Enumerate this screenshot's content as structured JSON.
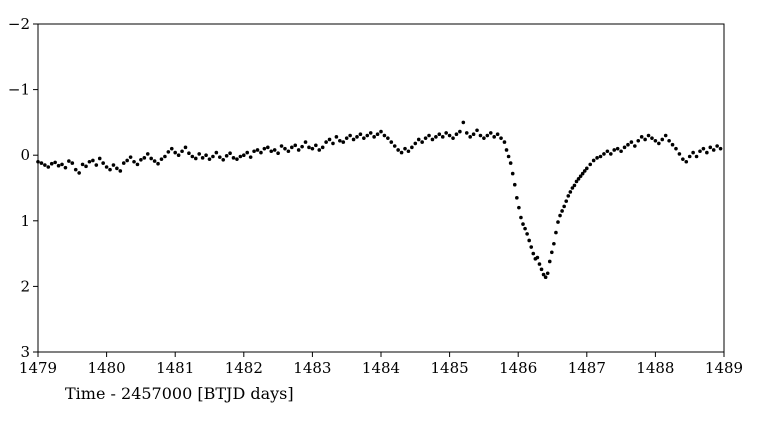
{
  "chart_data": {
    "type": "scatter",
    "title": "",
    "xlabel": "Time - 2457000 [BTJD days]",
    "ylabel": "",
    "xlim": [
      1479,
      1489
    ],
    "ylim": [
      3,
      -2
    ],
    "y_inverted": true,
    "grid": false,
    "marker_color": "#000000",
    "x_ticks": [
      1479,
      1480,
      1481,
      1482,
      1483,
      1484,
      1485,
      1486,
      1487,
      1488,
      1489
    ],
    "y_ticks": [
      -2,
      -1,
      0,
      1,
      2,
      3
    ],
    "x_tick_labels": [
      "1479",
      "1480",
      "1481",
      "1482",
      "1483",
      "1484",
      "1485",
      "1486",
      "1487",
      "1488",
      "1489"
    ],
    "y_tick_labels": [
      "−2",
      "−1",
      "0",
      "1",
      "2",
      "3"
    ],
    "series": [
      {
        "points": [
          [
            1479.0,
            0.1
          ],
          [
            1479.05,
            0.12
          ],
          [
            1479.1,
            0.15
          ],
          [
            1479.15,
            0.18
          ],
          [
            1479.2,
            0.13
          ],
          [
            1479.25,
            0.11
          ],
          [
            1479.3,
            0.16
          ],
          [
            1479.35,
            0.14
          ],
          [
            1479.4,
            0.19
          ],
          [
            1479.45,
            0.09
          ],
          [
            1479.5,
            0.12
          ],
          [
            1479.55,
            0.22
          ],
          [
            1479.6,
            0.27
          ],
          [
            1479.65,
            0.14
          ],
          [
            1479.7,
            0.17
          ],
          [
            1479.75,
            0.1
          ],
          [
            1479.8,
            0.08
          ],
          [
            1479.85,
            0.15
          ],
          [
            1479.9,
            0.05
          ],
          [
            1479.95,
            0.12
          ],
          [
            1480.0,
            0.18
          ],
          [
            1480.05,
            0.22
          ],
          [
            1480.1,
            0.15
          ],
          [
            1480.15,
            0.2
          ],
          [
            1480.2,
            0.24
          ],
          [
            1480.25,
            0.12
          ],
          [
            1480.3,
            0.08
          ],
          [
            1480.35,
            0.03
          ],
          [
            1480.4,
            0.1
          ],
          [
            1480.45,
            0.14
          ],
          [
            1480.5,
            0.07
          ],
          [
            1480.55,
            0.04
          ],
          [
            1480.6,
            -0.02
          ],
          [
            1480.65,
            0.05
          ],
          [
            1480.7,
            0.09
          ],
          [
            1480.75,
            0.13
          ],
          [
            1480.8,
            0.06
          ],
          [
            1480.85,
            0.02
          ],
          [
            1480.9,
            -0.05
          ],
          [
            1480.95,
            -0.1
          ],
          [
            1481.0,
            -0.04
          ],
          [
            1481.05,
            0.0
          ],
          [
            1481.1,
            -0.06
          ],
          [
            1481.15,
            -0.12
          ],
          [
            1481.2,
            -0.03
          ],
          [
            1481.25,
            0.02
          ],
          [
            1481.3,
            0.05
          ],
          [
            1481.35,
            -0.02
          ],
          [
            1481.4,
            0.04
          ],
          [
            1481.45,
            0.0
          ],
          [
            1481.5,
            0.06
          ],
          [
            1481.55,
            0.02
          ],
          [
            1481.6,
            -0.04
          ],
          [
            1481.65,
            0.03
          ],
          [
            1481.7,
            0.07
          ],
          [
            1481.75,
            0.01
          ],
          [
            1481.8,
            -0.03
          ],
          [
            1481.85,
            0.04
          ],
          [
            1481.9,
            0.06
          ],
          [
            1481.95,
            0.02
          ],
          [
            1482.0,
            0.0
          ],
          [
            1482.05,
            -0.04
          ],
          [
            1482.1,
            0.03
          ],
          [
            1482.15,
            -0.06
          ],
          [
            1482.2,
            -0.08
          ],
          [
            1482.25,
            -0.04
          ],
          [
            1482.3,
            -0.1
          ],
          [
            1482.35,
            -0.12
          ],
          [
            1482.4,
            -0.06
          ],
          [
            1482.45,
            -0.08
          ],
          [
            1482.5,
            -0.03
          ],
          [
            1482.55,
            -0.14
          ],
          [
            1482.6,
            -0.1
          ],
          [
            1482.65,
            -0.06
          ],
          [
            1482.7,
            -0.12
          ],
          [
            1482.75,
            -0.15
          ],
          [
            1482.8,
            -0.08
          ],
          [
            1482.85,
            -0.13
          ],
          [
            1482.9,
            -0.2
          ],
          [
            1482.95,
            -0.12
          ],
          [
            1483.0,
            -0.1
          ],
          [
            1483.05,
            -0.15
          ],
          [
            1483.1,
            -0.08
          ],
          [
            1483.15,
            -0.12
          ],
          [
            1483.2,
            -0.2
          ],
          [
            1483.25,
            -0.24
          ],
          [
            1483.3,
            -0.18
          ],
          [
            1483.35,
            -0.28
          ],
          [
            1483.4,
            -0.22
          ],
          [
            1483.45,
            -0.2
          ],
          [
            1483.5,
            -0.26
          ],
          [
            1483.55,
            -0.3
          ],
          [
            1483.6,
            -0.24
          ],
          [
            1483.65,
            -0.28
          ],
          [
            1483.7,
            -0.32
          ],
          [
            1483.75,
            -0.26
          ],
          [
            1483.8,
            -0.3
          ],
          [
            1483.85,
            -0.34
          ],
          [
            1483.9,
            -0.28
          ],
          [
            1483.95,
            -0.32
          ],
          [
            1484.0,
            -0.36
          ],
          [
            1484.05,
            -0.3
          ],
          [
            1484.1,
            -0.26
          ],
          [
            1484.15,
            -0.2
          ],
          [
            1484.2,
            -0.14
          ],
          [
            1484.25,
            -0.08
          ],
          [
            1484.3,
            -0.04
          ],
          [
            1484.35,
            -0.1
          ],
          [
            1484.4,
            -0.06
          ],
          [
            1484.45,
            -0.12
          ],
          [
            1484.5,
            -0.18
          ],
          [
            1484.55,
            -0.24
          ],
          [
            1484.6,
            -0.2
          ],
          [
            1484.65,
            -0.26
          ],
          [
            1484.7,
            -0.3
          ],
          [
            1484.75,
            -0.24
          ],
          [
            1484.8,
            -0.28
          ],
          [
            1484.85,
            -0.32
          ],
          [
            1484.9,
            -0.28
          ],
          [
            1484.95,
            -0.34
          ],
          [
            1485.0,
            -0.3
          ],
          [
            1485.05,
            -0.26
          ],
          [
            1485.1,
            -0.32
          ],
          [
            1485.15,
            -0.36
          ],
          [
            1485.2,
            -0.5
          ],
          [
            1485.25,
            -0.34
          ],
          [
            1485.3,
            -0.28
          ],
          [
            1485.35,
            -0.32
          ],
          [
            1485.4,
            -0.38
          ],
          [
            1485.45,
            -0.3
          ],
          [
            1485.5,
            -0.26
          ],
          [
            1485.55,
            -0.3
          ],
          [
            1485.6,
            -0.34
          ],
          [
            1485.65,
            -0.28
          ],
          [
            1485.7,
            -0.32
          ],
          [
            1485.75,
            -0.26
          ],
          [
            1485.8,
            -0.2
          ],
          [
            1485.83,
            -0.08
          ],
          [
            1485.86,
            0.02
          ],
          [
            1485.89,
            0.12
          ],
          [
            1485.92,
            0.28
          ],
          [
            1485.95,
            0.45
          ],
          [
            1485.98,
            0.65
          ],
          [
            1486.01,
            0.8
          ],
          [
            1486.04,
            0.95
          ],
          [
            1486.07,
            1.05
          ],
          [
            1486.1,
            1.12
          ],
          [
            1486.13,
            1.2
          ],
          [
            1486.16,
            1.3
          ],
          [
            1486.19,
            1.4
          ],
          [
            1486.22,
            1.5
          ],
          [
            1486.25,
            1.58
          ],
          [
            1486.28,
            1.56
          ],
          [
            1486.31,
            1.66
          ],
          [
            1486.34,
            1.74
          ],
          [
            1486.37,
            1.82
          ],
          [
            1486.4,
            1.86
          ],
          [
            1486.43,
            1.8
          ],
          [
            1486.46,
            1.62
          ],
          [
            1486.49,
            1.48
          ],
          [
            1486.52,
            1.35
          ],
          [
            1486.55,
            1.18
          ],
          [
            1486.58,
            1.02
          ],
          [
            1486.61,
            0.92
          ],
          [
            1486.64,
            0.85
          ],
          [
            1486.67,
            0.78
          ],
          [
            1486.7,
            0.7
          ],
          [
            1486.73,
            0.62
          ],
          [
            1486.76,
            0.56
          ],
          [
            1486.79,
            0.5
          ],
          [
            1486.82,
            0.46
          ],
          [
            1486.85,
            0.4
          ],
          [
            1486.88,
            0.36
          ],
          [
            1486.91,
            0.32
          ],
          [
            1486.94,
            0.28
          ],
          [
            1486.97,
            0.24
          ],
          [
            1487.0,
            0.2
          ],
          [
            1487.05,
            0.14
          ],
          [
            1487.1,
            0.08
          ],
          [
            1487.15,
            0.04
          ],
          [
            1487.2,
            0.02
          ],
          [
            1487.25,
            -0.02
          ],
          [
            1487.3,
            -0.06
          ],
          [
            1487.35,
            -0.02
          ],
          [
            1487.4,
            -0.08
          ],
          [
            1487.45,
            -0.1
          ],
          [
            1487.5,
            -0.06
          ],
          [
            1487.55,
            -0.12
          ],
          [
            1487.6,
            -0.16
          ],
          [
            1487.65,
            -0.2
          ],
          [
            1487.7,
            -0.14
          ],
          [
            1487.75,
            -0.22
          ],
          [
            1487.8,
            -0.28
          ],
          [
            1487.85,
            -0.24
          ],
          [
            1487.9,
            -0.3
          ],
          [
            1487.95,
            -0.26
          ],
          [
            1488.0,
            -0.22
          ],
          [
            1488.05,
            -0.18
          ],
          [
            1488.1,
            -0.24
          ],
          [
            1488.15,
            -0.3
          ],
          [
            1488.2,
            -0.22
          ],
          [
            1488.25,
            -0.16
          ],
          [
            1488.3,
            -0.1
          ],
          [
            1488.35,
            -0.02
          ],
          [
            1488.4,
            0.06
          ],
          [
            1488.45,
            0.1
          ],
          [
            1488.5,
            0.02
          ],
          [
            1488.55,
            -0.04
          ],
          [
            1488.6,
            0.02
          ],
          [
            1488.65,
            -0.06
          ],
          [
            1488.7,
            -0.1
          ],
          [
            1488.75,
            -0.04
          ],
          [
            1488.8,
            -0.12
          ],
          [
            1488.85,
            -0.08
          ],
          [
            1488.9,
            -0.14
          ],
          [
            1488.95,
            -0.1
          ]
        ]
      }
    ]
  }
}
